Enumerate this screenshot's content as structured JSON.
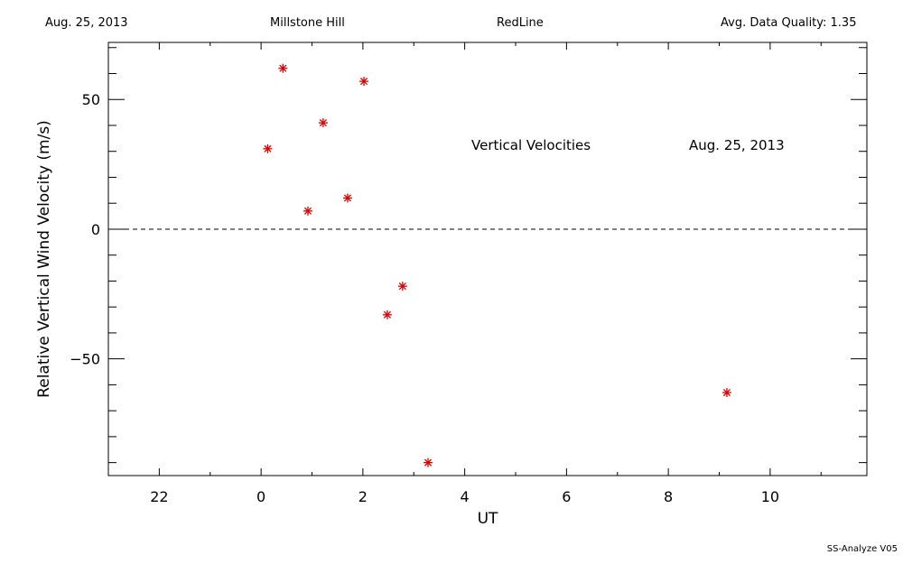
{
  "header": {
    "date": "Aug. 25, 2013",
    "site": "Millstone Hill",
    "line": "RedLine",
    "quality": "Avg. Data Quality: 1.35"
  },
  "footer": "SS-Analyze V05",
  "chart_data": {
    "type": "scatter",
    "title": "Vertical Velocities",
    "annotation": "Aug. 25, 2013",
    "xlabel": "UT",
    "ylabel": "Relative Vertical Wind Velocity (m/s)",
    "x_tick_labels": [
      "22",
      "0",
      "2",
      "4",
      "6",
      "8",
      "10"
    ],
    "x_tick_values": [
      22,
      0,
      2,
      4,
      6,
      8,
      10
    ],
    "y_ticks": [
      50,
      0,
      -50
    ],
    "xlim": [
      -3.0,
      11.9
    ],
    "ylim": [
      -95,
      72
    ],
    "zero_line": true,
    "marker_color": "#dd0000",
    "points": [
      {
        "x": 0.13,
        "y": 31
      },
      {
        "x": 0.43,
        "y": 62
      },
      {
        "x": 0.92,
        "y": 7
      },
      {
        "x": 1.22,
        "y": 41
      },
      {
        "x": 1.7,
        "y": 12
      },
      {
        "x": 2.02,
        "y": 57
      },
      {
        "x": 2.48,
        "y": -33
      },
      {
        "x": 2.78,
        "y": -22
      },
      {
        "x": 3.28,
        "y": -90
      },
      {
        "x": 9.15,
        "y": -63
      }
    ]
  }
}
